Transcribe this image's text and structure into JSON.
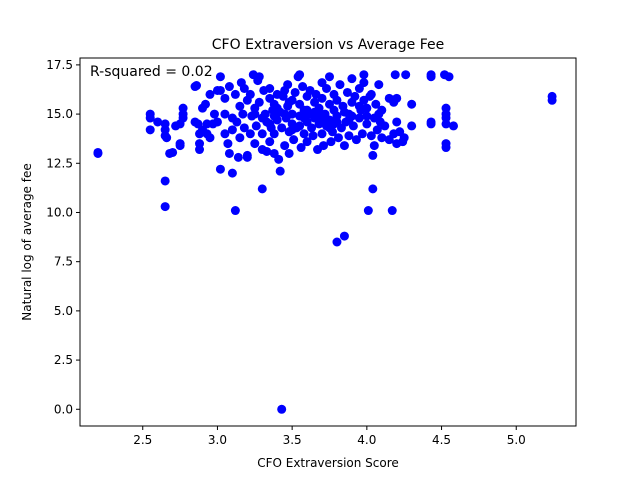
{
  "chart_data": {
    "type": "scatter",
    "title": "CFO Extraversion vs Average Fee",
    "xlabel": "CFO Extraversion Score",
    "ylabel": "Natural log of average fee",
    "annotation": "R-squared = 0.02",
    "xlim": [
      2.08,
      5.4
    ],
    "ylim": [
      -0.85,
      17.85
    ],
    "xticks": [
      2.5,
      3.0,
      3.5,
      4.0,
      4.5,
      5.0
    ],
    "xtick_labels": [
      "2.5",
      "3.0",
      "3.5",
      "4.0",
      "4.5",
      "5.0"
    ],
    "yticks": [
      0.0,
      2.5,
      5.0,
      7.5,
      10.0,
      12.5,
      15.0,
      17.5
    ],
    "ytick_labels": [
      "0.0",
      "2.5",
      "5.0",
      "7.5",
      "10.0",
      "12.5",
      "15.0",
      "17.5"
    ],
    "grid": false,
    "marker_color": "#0000ff",
    "series": [
      {
        "points": [
          [
            2.2,
            13.05
          ],
          [
            2.2,
            13.0
          ],
          [
            2.55,
            15.0
          ],
          [
            2.55,
            14.8
          ],
          [
            2.55,
            14.2
          ],
          [
            2.6,
            14.6
          ],
          [
            2.65,
            14.5
          ],
          [
            2.65,
            14.2
          ],
          [
            2.65,
            13.9
          ],
          [
            2.66,
            13.8
          ],
          [
            2.65,
            11.6
          ],
          [
            2.65,
            10.3
          ],
          [
            2.68,
            13.0
          ],
          [
            2.7,
            13.05
          ],
          [
            2.72,
            14.4
          ],
          [
            2.75,
            14.5
          ],
          [
            2.75,
            13.5
          ],
          [
            2.75,
            13.4
          ],
          [
            2.77,
            15.3
          ],
          [
            2.77,
            15.0
          ],
          [
            2.77,
            14.8
          ],
          [
            2.85,
            16.4
          ],
          [
            2.86,
            16.45
          ],
          [
            2.85,
            14.6
          ],
          [
            2.87,
            14.5
          ],
          [
            2.88,
            14.0
          ],
          [
            2.88,
            13.5
          ],
          [
            2.88,
            13.2
          ],
          [
            2.9,
            15.3
          ],
          [
            2.9,
            14.2
          ],
          [
            2.92,
            15.5
          ],
          [
            2.93,
            14.0
          ],
          [
            2.93,
            14.5
          ],
          [
            2.95,
            16.0
          ],
          [
            2.95,
            13.8
          ],
          [
            2.97,
            14.5
          ],
          [
            2.98,
            15.0
          ],
          [
            3.0,
            16.2
          ],
          [
            3.0,
            14.6
          ],
          [
            3.02,
            16.9
          ],
          [
            3.02,
            16.2
          ],
          [
            3.02,
            12.2
          ],
          [
            3.05,
            15.8
          ],
          [
            3.05,
            15.0
          ],
          [
            3.05,
            14.0
          ],
          [
            3.07,
            13.5
          ],
          [
            3.08,
            16.4
          ],
          [
            3.08,
            13.0
          ],
          [
            3.1,
            14.8
          ],
          [
            3.1,
            14.2
          ],
          [
            3.1,
            12.0
          ],
          [
            3.12,
            10.1
          ],
          [
            3.12,
            16.0
          ],
          [
            3.13,
            14.6
          ],
          [
            3.14,
            12.8
          ],
          [
            3.15,
            15.4
          ],
          [
            3.15,
            13.8
          ],
          [
            3.16,
            16.6
          ],
          [
            3.17,
            15.0
          ],
          [
            3.18,
            14.3
          ],
          [
            3.18,
            16.3
          ],
          [
            3.2,
            15.7
          ],
          [
            3.2,
            12.9
          ],
          [
            3.2,
            12.8
          ],
          [
            3.22,
            16.0
          ],
          [
            3.22,
            14.0
          ],
          [
            3.23,
            14.9
          ],
          [
            3.24,
            17.0
          ],
          [
            3.25,
            15.3
          ],
          [
            3.25,
            13.5
          ],
          [
            3.26,
            14.4
          ],
          [
            3.27,
            16.7
          ],
          [
            3.28,
            16.9
          ],
          [
            3.28,
            15.6
          ],
          [
            3.3,
            14.0
          ],
          [
            3.3,
            11.2
          ],
          [
            3.3,
            13.2
          ],
          [
            3.31,
            16.2
          ],
          [
            3.32,
            15.0
          ],
          [
            3.33,
            14.6
          ],
          [
            3.33,
            13.1
          ],
          [
            3.35,
            16.3
          ],
          [
            3.35,
            15.8
          ],
          [
            3.35,
            13.6
          ],
          [
            3.36,
            14.3
          ],
          [
            3.37,
            15.2
          ],
          [
            3.38,
            15.5
          ],
          [
            3.38,
            14.0
          ],
          [
            3.38,
            13.0
          ],
          [
            3.4,
            16.0
          ],
          [
            3.4,
            14.7
          ],
          [
            3.41,
            12.7
          ],
          [
            3.42,
            15.1
          ],
          [
            3.42,
            12.1
          ],
          [
            3.43,
            14.3
          ],
          [
            3.43,
            0.0
          ],
          [
            3.44,
            15.9
          ],
          [
            3.45,
            16.2
          ],
          [
            3.45,
            13.4
          ],
          [
            3.46,
            14.8
          ],
          [
            3.47,
            16.5
          ],
          [
            3.47,
            15.4
          ],
          [
            3.48,
            14.1
          ],
          [
            3.48,
            13.0
          ],
          [
            3.5,
            15.7
          ],
          [
            3.5,
            15.0
          ],
          [
            3.5,
            14.5
          ],
          [
            3.51,
            13.7
          ],
          [
            3.52,
            16.1
          ],
          [
            3.53,
            14.3
          ],
          [
            3.54,
            16.9
          ],
          [
            3.55,
            17.0
          ],
          [
            3.55,
            15.5
          ],
          [
            3.55,
            14.9
          ],
          [
            3.56,
            13.3
          ],
          [
            3.57,
            16.4
          ],
          [
            3.58,
            15.2
          ],
          [
            3.58,
            14.0
          ],
          [
            3.6,
            15.9
          ],
          [
            3.6,
            14.6
          ],
          [
            3.6,
            13.6
          ],
          [
            3.62,
            16.2
          ],
          [
            3.62,
            15.0
          ],
          [
            3.63,
            14.3
          ],
          [
            3.64,
            13.9
          ],
          [
            3.65,
            15.6
          ],
          [
            3.65,
            14.8
          ],
          [
            3.66,
            16.0
          ],
          [
            3.67,
            13.2
          ],
          [
            3.68,
            15.3
          ],
          [
            3.68,
            14.5
          ],
          [
            3.7,
            16.6
          ],
          [
            3.7,
            15.8
          ],
          [
            3.7,
            14.0
          ],
          [
            3.71,
            13.4
          ],
          [
            3.72,
            15.0
          ],
          [
            3.73,
            16.3
          ],
          [
            3.73,
            14.4
          ],
          [
            3.75,
            16.9
          ],
          [
            3.75,
            15.5
          ],
          [
            3.75,
            14.7
          ],
          [
            3.76,
            13.6
          ],
          [
            3.77,
            14.1
          ],
          [
            3.78,
            15.2
          ],
          [
            3.78,
            16.0
          ],
          [
            3.8,
            8.5
          ],
          [
            3.8,
            15.7
          ],
          [
            3.8,
            14.9
          ],
          [
            3.81,
            13.8
          ],
          [
            3.82,
            16.5
          ],
          [
            3.83,
            14.3
          ],
          [
            3.84,
            15.4
          ],
          [
            3.85,
            13.4
          ],
          [
            3.85,
            8.8
          ],
          [
            3.86,
            14.6
          ],
          [
            3.87,
            16.1
          ],
          [
            3.88,
            15.0
          ],
          [
            3.88,
            13.9
          ],
          [
            3.9,
            16.8
          ],
          [
            3.9,
            15.6
          ],
          [
            3.91,
            14.4
          ],
          [
            3.92,
            15.9
          ],
          [
            3.93,
            13.7
          ],
          [
            3.95,
            16.3
          ],
          [
            3.95,
            14.8
          ],
          [
            3.96,
            15.2
          ],
          [
            3.97,
            14.0
          ],
          [
            3.98,
            16.6
          ],
          [
            3.98,
            15.7
          ],
          [
            3.98,
            17.0
          ],
          [
            4.0,
            15.3
          ],
          [
            4.0,
            14.5
          ],
          [
            4.01,
            10.1
          ],
          [
            4.02,
            15.9
          ],
          [
            4.03,
            16.0
          ],
          [
            4.03,
            13.9
          ],
          [
            4.04,
            12.9
          ],
          [
            4.04,
            11.2
          ],
          [
            4.05,
            14.8
          ],
          [
            4.05,
            13.4
          ],
          [
            4.06,
            15.5
          ],
          [
            4.07,
            14.2
          ],
          [
            4.08,
            15.0
          ],
          [
            4.08,
            16.5
          ],
          [
            4.09,
            14.6
          ],
          [
            4.1,
            15.2
          ],
          [
            4.1,
            13.8
          ],
          [
            4.12,
            14.4
          ],
          [
            4.15,
            15.8
          ],
          [
            4.15,
            13.7
          ],
          [
            4.17,
            10.1
          ],
          [
            4.18,
            15.6
          ],
          [
            4.18,
            14.0
          ],
          [
            4.19,
            17.0
          ],
          [
            4.2,
            15.8
          ],
          [
            4.2,
            14.6
          ],
          [
            4.2,
            13.5
          ],
          [
            4.22,
            14.1
          ],
          [
            4.24,
            13.6
          ],
          [
            4.25,
            13.8
          ],
          [
            4.26,
            17.0
          ],
          [
            4.3,
            15.5
          ],
          [
            4.3,
            14.4
          ],
          [
            4.43,
            17.0
          ],
          [
            4.43,
            16.9
          ],
          [
            4.43,
            14.6
          ],
          [
            4.43,
            14.5
          ],
          [
            4.52,
            17.0
          ],
          [
            4.53,
            15.3
          ],
          [
            4.53,
            15.0
          ],
          [
            4.53,
            14.8
          ],
          [
            4.53,
            14.5
          ],
          [
            4.53,
            13.5
          ],
          [
            4.53,
            13.3
          ],
          [
            4.55,
            16.9
          ],
          [
            4.58,
            14.4
          ],
          [
            5.24,
            15.9
          ],
          [
            5.24,
            15.7
          ],
          [
            3.25,
            15.0
          ],
          [
            3.3,
            14.8
          ],
          [
            3.35,
            14.5
          ],
          [
            3.4,
            15.3
          ],
          [
            3.45,
            15.0
          ],
          [
            3.5,
            14.2
          ],
          [
            3.55,
            14.4
          ],
          [
            3.6,
            15.2
          ],
          [
            3.65,
            15.1
          ],
          [
            3.7,
            14.7
          ],
          [
            3.75,
            14.3
          ],
          [
            3.8,
            14.6
          ],
          [
            3.85,
            15.1
          ],
          [
            3.9,
            14.9
          ],
          [
            3.95,
            15.4
          ],
          [
            4.0,
            14.9
          ],
          [
            3.38,
            14.9
          ],
          [
            3.48,
            15.6
          ],
          [
            3.58,
            14.8
          ],
          [
            3.68,
            15.0
          ],
          [
            3.78,
            14.5
          ],
          [
            3.88,
            14.7
          ]
        ]
      }
    ]
  }
}
